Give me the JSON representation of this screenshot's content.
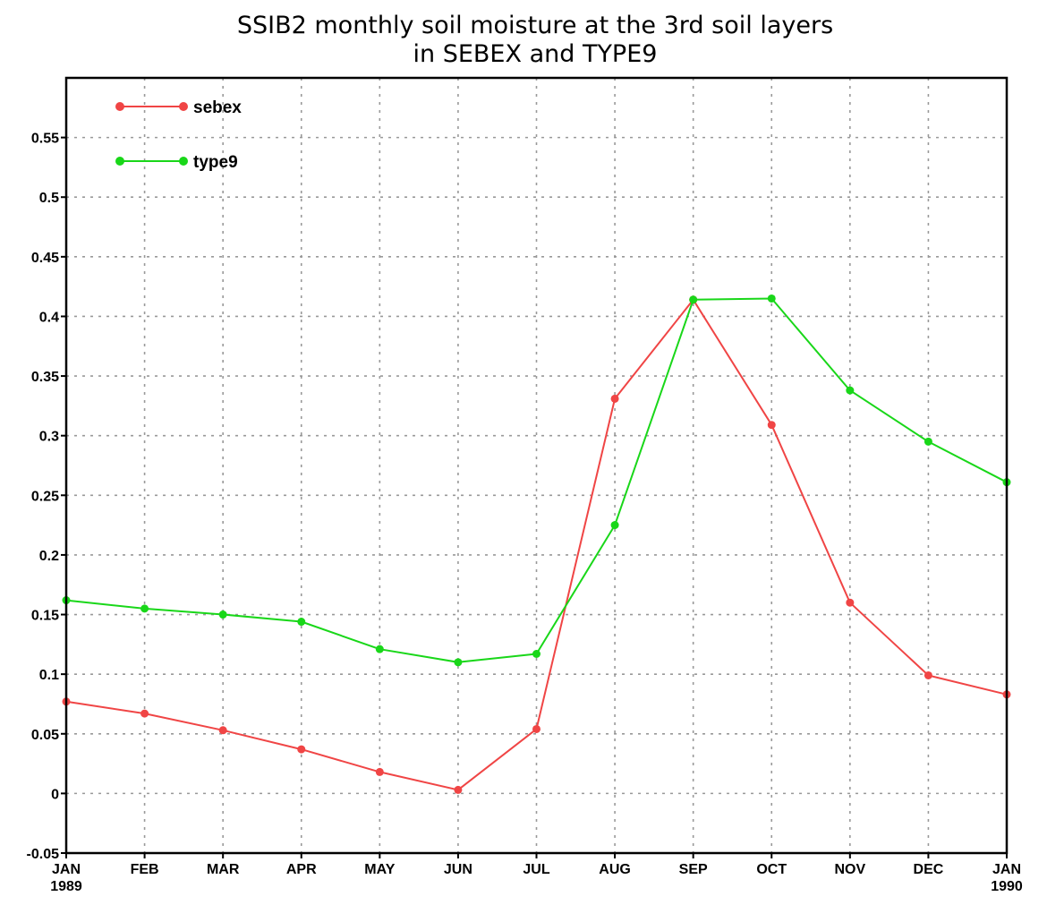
{
  "chart_data": {
    "type": "line",
    "title": [
      "SSIB2 monthly soil moisture at the 3rd soil layers",
      "in SEBEX and TYPE9"
    ],
    "xlabel": "",
    "ylabel": "",
    "x": [
      [
        "JAN",
        "1989"
      ],
      [
        "FEB"
      ],
      [
        "MAR"
      ],
      [
        "APR"
      ],
      [
        "MAY"
      ],
      [
        "JUN"
      ],
      [
        "JUL"
      ],
      [
        "AUG"
      ],
      [
        "SEP"
      ],
      [
        "OCT"
      ],
      [
        "NOV"
      ],
      [
        "DEC"
      ],
      [
        "JAN",
        "1990"
      ]
    ],
    "ylim": [
      -0.05,
      0.6
    ],
    "yticks": [
      -0.05,
      0,
      0.05,
      0.1,
      0.15,
      0.2,
      0.25,
      0.3,
      0.35,
      0.4,
      0.45,
      0.5,
      0.55
    ],
    "ytick_labels": [
      "-0.05",
      "0",
      "0.05",
      "0.1",
      "0.15",
      "0.2",
      "0.25",
      "0.3",
      "0.35",
      "0.4",
      "0.45",
      "0.5",
      "0.55"
    ],
    "grid": true,
    "legend_position": "top-left",
    "series": [
      {
        "name": "sebex",
        "color": "#f04545",
        "values": [
          0.077,
          0.067,
          0.053,
          0.037,
          0.018,
          0.003,
          0.054,
          0.331,
          0.414,
          0.309,
          0.16,
          0.099,
          0.083
        ]
      },
      {
        "name": "type9",
        "color": "#19d719",
        "values": [
          0.162,
          0.155,
          0.15,
          0.144,
          0.121,
          0.11,
          0.117,
          0.225,
          0.414,
          0.415,
          0.338,
          0.295,
          0.261
        ]
      }
    ]
  }
}
